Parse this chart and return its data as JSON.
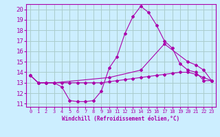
{
  "xlabel": "Windchill (Refroidissement éolien,°C)",
  "background_color": "#cceeff",
  "grid_color": "#aacccc",
  "line_color": "#aa00aa",
  "x_min": 0,
  "x_max": 23,
  "y_min": 11,
  "y_max": 20,
  "y_ticks": [
    11,
    12,
    13,
    14,
    15,
    16,
    17,
    18,
    19,
    20
  ],
  "x_ticks": [
    0,
    1,
    2,
    3,
    4,
    5,
    6,
    7,
    8,
    9,
    10,
    11,
    12,
    13,
    14,
    15,
    16,
    17,
    18,
    19,
    20,
    21,
    22,
    23
  ],
  "line1_x": [
    0,
    1,
    2,
    3,
    4,
    5,
    6,
    7,
    8,
    9,
    10,
    11,
    12,
    13,
    14,
    15,
    16,
    17,
    18,
    19,
    20,
    21,
    22,
    23
  ],
  "line1_y": [
    13.7,
    13.0,
    13.0,
    13.0,
    12.6,
    11.3,
    11.2,
    11.2,
    11.3,
    12.2,
    14.4,
    15.5,
    17.7,
    19.3,
    20.3,
    19.7,
    18.5,
    17.0,
    16.3,
    14.8,
    14.2,
    14.0,
    13.2,
    13.2
  ],
  "line2_x": [
    0,
    1,
    2,
    3,
    4,
    5,
    6,
    7,
    8,
    9,
    10,
    11,
    12,
    13,
    14,
    15,
    16,
    17,
    18,
    19,
    20,
    21,
    22,
    23
  ],
  "line2_y": [
    13.7,
    13.0,
    13.0,
    13.0,
    13.0,
    13.0,
    13.0,
    13.0,
    13.0,
    13.0,
    13.1,
    13.2,
    13.3,
    13.4,
    13.5,
    13.6,
    13.7,
    13.8,
    13.9,
    14.0,
    14.0,
    13.8,
    13.5,
    13.2
  ],
  "line3_x": [
    0,
    1,
    2,
    3,
    10,
    14,
    17,
    20,
    21,
    22,
    23
  ],
  "line3_y": [
    13.7,
    13.0,
    13.0,
    13.0,
    13.5,
    14.2,
    16.7,
    15.0,
    14.7,
    14.2,
    13.2
  ]
}
